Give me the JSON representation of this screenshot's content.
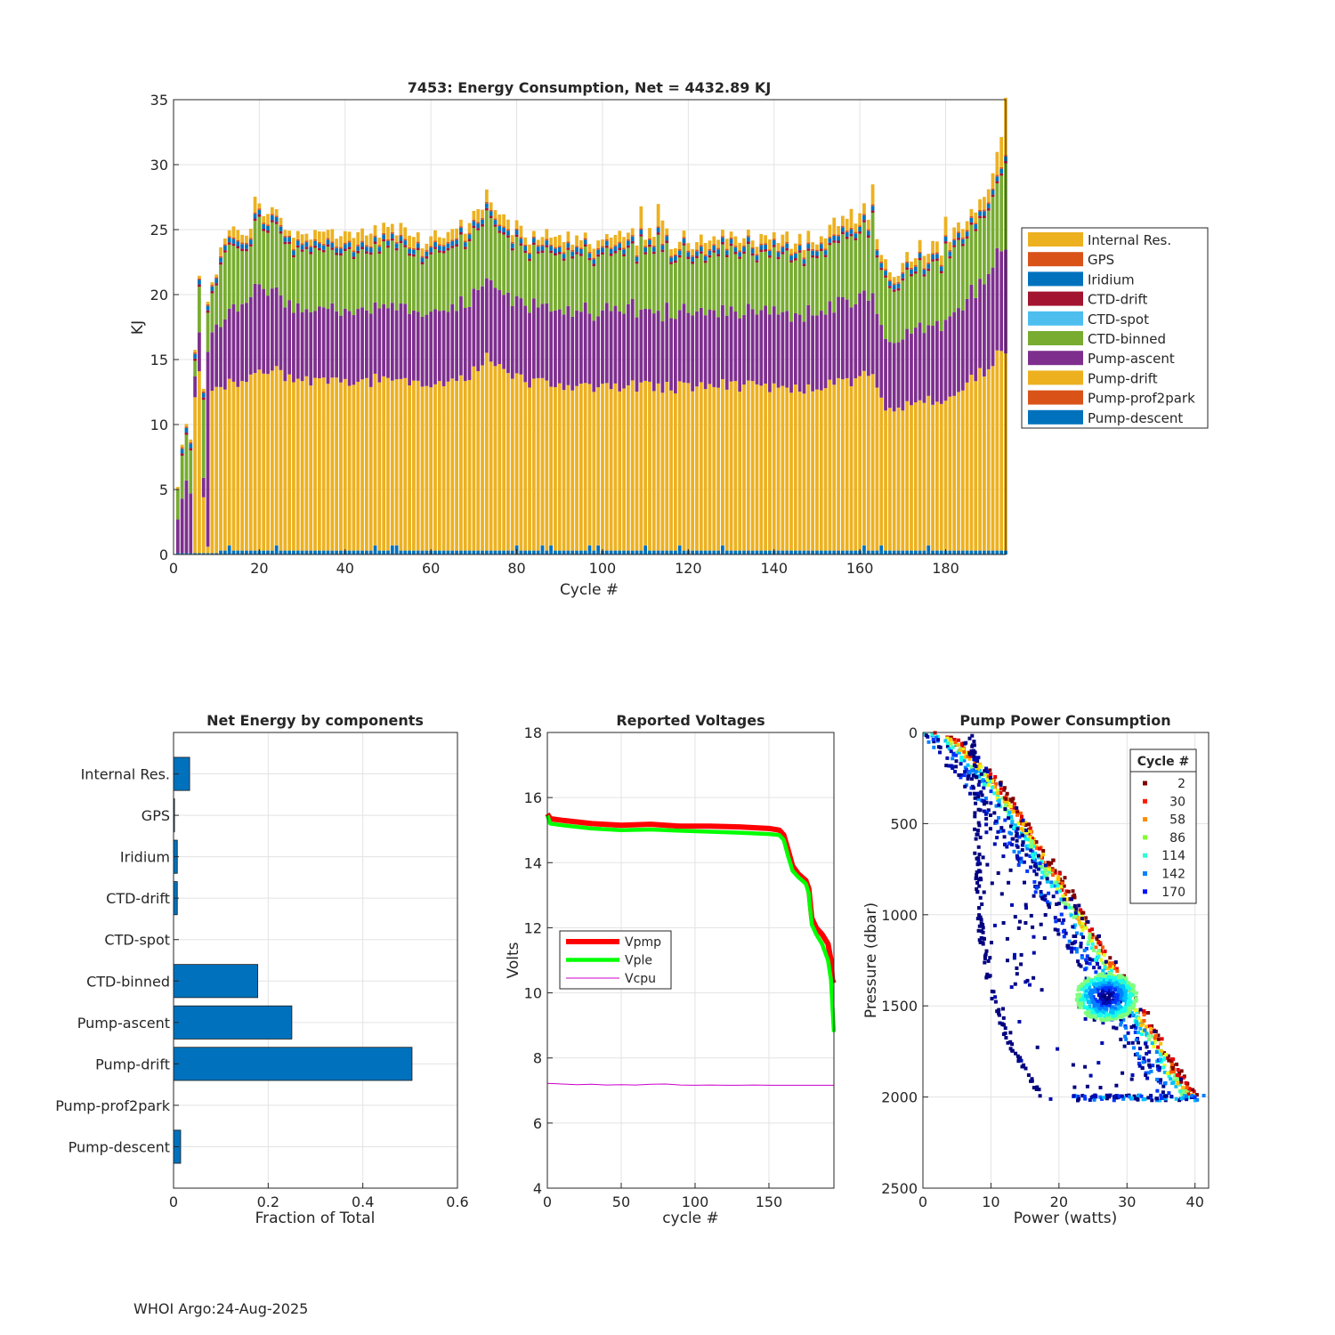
{
  "footer": "WHOI Argo:24-Aug-2025",
  "colors": {
    "internal": "#EDB120",
    "gps": "#D95319",
    "iridium": "#0072BD",
    "ctd_drift": "#A2142F",
    "ctd_spot": "#4DBEEE",
    "ctd_binned": "#77AC30",
    "pump_ascent": "#7E2F8E",
    "pump_drift": "#EDB120",
    "pump_prof2park": "#D95319",
    "pump_descent": "#0072BD",
    "vpmp": "#FF0000",
    "vple": "#00FF00",
    "vcpu": "#CC00CC",
    "hbar": "#0072BD"
  },
  "chart_data": [
    {
      "id": "energy",
      "type": "bar",
      "stacked": true,
      "title": "7453: Energy Consumption,  Net = 4432.89 KJ",
      "xlabel": "Cycle #",
      "ylabel": "KJ",
      "xlim": [
        0,
        194
      ],
      "ylim": [
        0,
        35
      ],
      "xticks": [
        0,
        20,
        40,
        60,
        80,
        100,
        120,
        140,
        160,
        180
      ],
      "yticks": [
        0,
        5,
        10,
        15,
        20,
        25,
        30,
        35
      ],
      "grid": true,
      "legend_position": "outside-right",
      "legend": [
        "Internal Res.",
        "GPS",
        "Iridium",
        "CTD-drift",
        "CTD-spot",
        "CTD-binned",
        "Pump-ascent",
        "Pump-drift",
        "Pump-prof2park",
        "Pump-descent"
      ],
      "early_cycles": [
        {
          "cycle": 1,
          "descent": 0.1,
          "drift": 0,
          "ascent": 2.6,
          "binned": 2.3,
          "top": 0.3
        },
        {
          "cycle": 2,
          "descent": 0.1,
          "drift": 0,
          "ascent": 4.2,
          "binned": 3.3,
          "top": 0.5
        },
        {
          "cycle": 3,
          "descent": 0.1,
          "drift": 0,
          "ascent": 5.6,
          "binned": 3.5,
          "top": 0.6
        },
        {
          "cycle": 4,
          "descent": 0.1,
          "drift": 0,
          "ascent": 4.6,
          "binned": 3.3,
          "top": 0.4
        },
        {
          "cycle": 5,
          "descent": 0.1,
          "drift": 12.0,
          "ascent": 1.6,
          "binned": 1.2,
          "top": 0.5
        },
        {
          "cycle": 6,
          "descent": 0.1,
          "drift": 14.0,
          "ascent": 3.0,
          "binned": 3.5,
          "top": 0.6
        },
        {
          "cycle": 7,
          "descent": 0.1,
          "drift": 4.3,
          "ascent": 1.5,
          "binned": 6.0,
          "top": 0.6
        },
        {
          "cycle": 8,
          "descent": 0.1,
          "drift": 0.5,
          "ascent": 15.0,
          "binned": 3.0,
          "top": 0.6
        },
        {
          "cycle": 9,
          "descent": 0.1,
          "drift": 12.5,
          "ascent": 4.5,
          "binned": 3.0,
          "top": 0.6
        },
        {
          "cycle": 10,
          "descent": 0.1,
          "drift": 12.8,
          "ascent": 4.8,
          "binned": 3.0,
          "top": 0.6
        }
      ],
      "anchor_cycles": [
        11,
        19,
        20,
        30,
        40,
        50,
        60,
        68,
        72,
        73,
        80,
        90,
        100,
        110,
        113,
        120,
        130,
        140,
        150,
        155,
        163,
        165,
        168,
        170,
        180,
        185,
        190,
        193,
        194
      ],
      "anchor_drift": [
        12.5,
        13.5,
        14.0,
        13.0,
        13.0,
        13.0,
        12.8,
        13.2,
        14.5,
        15.0,
        13.2,
        12.5,
        12.6,
        12.7,
        12.6,
        12.5,
        12.7,
        12.6,
        12.4,
        13.0,
        13.2,
        11.0,
        10.5,
        11.0,
        11.5,
        13.0,
        14.0,
        15.5,
        15.5
      ],
      "anchor_ascent": [
        5.0,
        6.5,
        6.5,
        5.5,
        5.4,
        5.7,
        5.6,
        5.8,
        6.0,
        6.0,
        5.8,
        5.8,
        5.8,
        5.9,
        5.8,
        5.7,
        5.6,
        5.6,
        5.8,
        5.9,
        6.2,
        5.5,
        5.4,
        5.4,
        6.0,
        6.5,
        7.0,
        8.0,
        8.0
      ],
      "anchor_binned": [
        5.0,
        4.0,
        4.8,
        4.5,
        4.5,
        4.5,
        4.4,
        4.6,
        5.0,
        5.0,
        4.3,
        4.2,
        4.4,
        4.5,
        4.3,
        4.3,
        4.4,
        4.4,
        4.4,
        4.5,
        5.0,
        4.4,
        4.3,
        4.3,
        4.7,
        5.0,
        5.0,
        5.5,
        6.5
      ],
      "anchor_top": [
        1.3,
        1.3,
        1.2,
        1.3,
        1.4,
        1.4,
        1.3,
        1.3,
        1.5,
        1.4,
        1.3,
        1.3,
        1.3,
        1.3,
        1.4,
        1.3,
        1.3,
        1.3,
        1.3,
        1.4,
        1.4,
        1.3,
        1.3,
        1.3,
        1.4,
        1.4,
        1.4,
        3.0,
        5.0
      ],
      "descent_kj": 0.3,
      "spikes": [
        {
          "cycle": 19,
          "extra": 1.0
        },
        {
          "cycle": 73,
          "extra": 1.0
        },
        {
          "cycle": 109,
          "extra": 2.3
        },
        {
          "cycle": 113,
          "extra": 2.0
        },
        {
          "cycle": 114,
          "extra": 2.2
        },
        {
          "cycle": 154,
          "extra": 1.8
        },
        {
          "cycle": 158,
          "extra": 1.6
        },
        {
          "cycle": 163,
          "extra": 2.3
        },
        {
          "cycle": 180,
          "extra": 1.5
        }
      ]
    },
    {
      "id": "fraction",
      "type": "bar",
      "orientation": "horizontal",
      "title": "Net Energy by components",
      "xlabel": "Fraction of Total",
      "xlim": [
        0,
        0.6
      ],
      "xticks": [
        0,
        0.2,
        0.4,
        0.6
      ],
      "xtick_labels": [
        "0",
        "0.2",
        "0.4",
        "0.6"
      ],
      "grid": true,
      "categories": [
        "Internal Res.",
        "GPS",
        "Iridium",
        "CTD-drift",
        "CTD-spot",
        "CTD-binned",
        "Pump-ascent",
        "Pump-drift",
        "Pump-prof2park",
        "Pump-descent"
      ],
      "values": [
        0.034,
        0.002,
        0.008,
        0.008,
        0.0,
        0.178,
        0.25,
        0.504,
        0.0,
        0.015
      ]
    },
    {
      "id": "voltages",
      "type": "line",
      "title": "Reported Voltages",
      "xlabel": "cycle #",
      "ylabel": "Volts",
      "xlim": [
        0,
        194
      ],
      "ylim": [
        4,
        18
      ],
      "xticks": [
        0,
        50,
        100,
        150
      ],
      "yticks": [
        4,
        6,
        8,
        10,
        12,
        14,
        16,
        18
      ],
      "grid": true,
      "legend_position": "middle-left",
      "series": [
        {
          "name": "Vpmp",
          "x": [
            0,
            2,
            10,
            30,
            50,
            70,
            90,
            110,
            130,
            150,
            157,
            160,
            163,
            166,
            170,
            175,
            177,
            179,
            182,
            186,
            190,
            192,
            193,
            194
          ],
          "y": [
            15.5,
            15.35,
            15.3,
            15.2,
            15.15,
            15.18,
            15.12,
            15.12,
            15.1,
            15.05,
            15.0,
            14.85,
            14.4,
            13.9,
            13.65,
            13.45,
            13.2,
            12.3,
            12.0,
            11.8,
            11.5,
            11.0,
            10.4,
            10.3
          ]
        },
        {
          "name": "Vple",
          "x": [
            0,
            2,
            10,
            30,
            50,
            70,
            90,
            110,
            130,
            150,
            157,
            160,
            163,
            166,
            170,
            175,
            177,
            179,
            182,
            186,
            190,
            192,
            193,
            194
          ],
          "y": [
            15.45,
            15.2,
            15.15,
            15.05,
            15.0,
            15.02,
            14.98,
            14.95,
            14.92,
            14.88,
            14.85,
            14.7,
            14.2,
            13.75,
            13.55,
            13.35,
            13.05,
            12.1,
            11.8,
            11.5,
            11.0,
            10.4,
            9.6,
            8.8
          ]
        },
        {
          "name": "Vcpu",
          "x": [
            0,
            10,
            20,
            30,
            40,
            50,
            60,
            70,
            80,
            90,
            100,
            110,
            120,
            130,
            140,
            150,
            160,
            170,
            180,
            194
          ],
          "y": [
            7.22,
            7.2,
            7.18,
            7.19,
            7.17,
            7.18,
            7.17,
            7.19,
            7.2,
            7.17,
            7.16,
            7.17,
            7.16,
            7.16,
            7.17,
            7.16,
            7.16,
            7.16,
            7.16,
            7.16
          ]
        }
      ]
    },
    {
      "id": "pump_power",
      "type": "scatter",
      "title": "Pump Power Consumption",
      "xlabel": "Power (watts)",
      "ylabel": "Pressure (dbar)",
      "xlim": [
        0,
        42
      ],
      "ylim": [
        0,
        2500
      ],
      "y_reversed": true,
      "xticks": [
        0,
        10,
        20,
        30,
        40
      ],
      "yticks": [
        0,
        500,
        1000,
        1500,
        2000,
        2500
      ],
      "grid": true,
      "legend_title": "Cycle #",
      "legend_position": "top-right",
      "legend": [
        {
          "label": "2",
          "color": "#7F0000"
        },
        {
          "label": "30",
          "color": "#FF1A00"
        },
        {
          "label": "58",
          "color": "#FF8C00"
        },
        {
          "label": "86",
          "color": "#7FFF2A"
        },
        {
          "label": "114",
          "color": "#2AFFD4"
        },
        {
          "label": "142",
          "color": "#0080FF"
        },
        {
          "label": "170",
          "color": "#0010FF"
        }
      ],
      "envelope": [
        [
          2.5,
          0
        ],
        [
          5,
          30
        ],
        [
          10,
          200
        ],
        [
          15,
          450
        ],
        [
          20,
          750
        ],
        [
          25,
          1050
        ],
        [
          30,
          1350
        ],
        [
          34,
          1600
        ],
        [
          38,
          1850
        ],
        [
          41,
          2020
        ]
      ],
      "curve_inner": [
        [
          7,
          0
        ],
        [
          8,
          400
        ],
        [
          8,
          700
        ],
        [
          8.5,
          1100
        ],
        [
          10,
          1400
        ],
        [
          12,
          1650
        ],
        [
          15,
          1850
        ],
        [
          18,
          2030
        ]
      ],
      "blob_center": [
        27,
        1450
      ],
      "palette": [
        "#00007F",
        "#000DB0",
        "#0035FF",
        "#0080FF",
        "#00BFFF",
        "#19FFE6",
        "#7FFF7F",
        "#E6FF19",
        "#FFBF00",
        "#FF5A00",
        "#E60000",
        "#7F0000"
      ]
    }
  ]
}
